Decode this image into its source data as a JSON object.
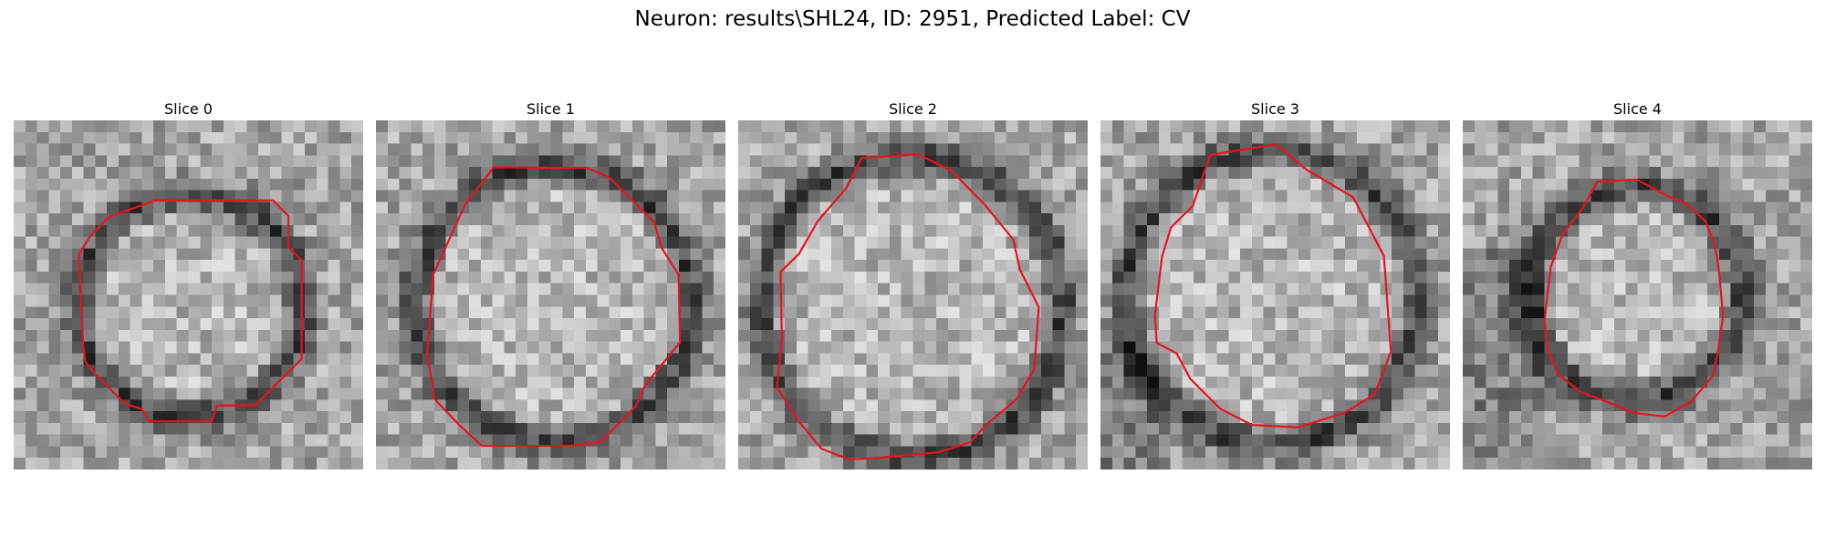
{
  "figure": {
    "title": "Neuron: results\\SHL24, ID: 2951, Predicted Label: CV"
  },
  "colors": {
    "background": "#ffffff",
    "contour": "#e8141c",
    "text": "#000000"
  },
  "panels": [
    {
      "title": "Slice 0",
      "contour": [
        [
          40.4,
          22.4
        ],
        [
          74.2,
          22.4
        ],
        [
          78.6,
          26.9
        ],
        [
          78.6,
          35.8
        ],
        [
          82.4,
          39.6
        ],
        [
          82.4,
          67.8
        ],
        [
          76.1,
          74.1
        ],
        [
          69.2,
          81.0
        ],
        [
          58.1,
          81.2
        ],
        [
          56.6,
          85.7
        ],
        [
          38.8,
          85.7
        ],
        [
          36.7,
          82.2
        ],
        [
          31.8,
          80.6
        ],
        [
          22.8,
          71.6
        ],
        [
          20.5,
          68.6
        ],
        [
          19.9,
          63.9
        ],
        [
          18.6,
          38.0
        ],
        [
          21.9,
          32.6
        ],
        [
          27.2,
          27.2
        ],
        [
          40.4,
          22.4
        ]
      ]
    },
    {
      "title": "Slice 1",
      "contour": [
        [
          33.7,
          12.9
        ],
        [
          60.3,
          13.1
        ],
        [
          66.7,
          15.8
        ],
        [
          79.6,
          28.6
        ],
        [
          81.7,
          35.9
        ],
        [
          86.6,
          43.7
        ],
        [
          87.0,
          63.1
        ],
        [
          77.1,
          75.2
        ],
        [
          74.4,
          81.3
        ],
        [
          64.1,
          91.7
        ],
        [
          55.1,
          92.7
        ],
        [
          30.3,
          92.7
        ],
        [
          23.7,
          86.6
        ],
        [
          16.6,
          79.1
        ],
        [
          16.1,
          74.3
        ],
        [
          14.6,
          66.9
        ],
        [
          16.4,
          43.6
        ],
        [
          25.5,
          23.6
        ],
        [
          33.7,
          12.9
        ]
      ]
    },
    {
      "title": "Slice 2",
      "contour": [
        [
          35.3,
          10.3
        ],
        [
          51.4,
          9.2
        ],
        [
          61.0,
          13.9
        ],
        [
          70.6,
          23.7
        ],
        [
          78.7,
          33.6
        ],
        [
          80.6,
          42.2
        ],
        [
          86.0,
          53.0
        ],
        [
          84.7,
          70.7
        ],
        [
          79.7,
          79.3
        ],
        [
          70.4,
          87.2
        ],
        [
          66.6,
          91.6
        ],
        [
          57.0,
          94.6
        ],
        [
          37.6,
          96.3
        ],
        [
          31.7,
          96.6
        ],
        [
          23.8,
          93.5
        ],
        [
          17.2,
          85.6
        ],
        [
          11.1,
          75.9
        ],
        [
          12.5,
          61.5
        ],
        [
          12.1,
          42.9
        ],
        [
          17.4,
          37.7
        ],
        [
          22.8,
          28.3
        ],
        [
          30.9,
          18.9
        ],
        [
          35.3,
          10.3
        ]
      ]
    },
    {
      "title": "Slice 3",
      "contour": [
        [
          31.4,
          9.4
        ],
        [
          50.2,
          6.3
        ],
        [
          59.1,
          13.7
        ],
        [
          72.3,
          21.5
        ],
        [
          81.1,
          38.3
        ],
        [
          83.1,
          65.7
        ],
        [
          78.5,
          77.9
        ],
        [
          69.8,
          83.3
        ],
        [
          56.4,
          87.4
        ],
        [
          43.3,
          86.7
        ],
        [
          34.3,
          82.1
        ],
        [
          25.7,
          73.5
        ],
        [
          21.8,
          66.2
        ],
        [
          16.1,
          63.2
        ],
        [
          15.6,
          55.3
        ],
        [
          17.6,
          38.5
        ],
        [
          20.2,
          30.1
        ],
        [
          26.4,
          24.0
        ],
        [
          31.4,
          9.4
        ]
      ]
    },
    {
      "title": "Slice 4",
      "contour": [
        [
          38.6,
          17.0
        ],
        [
          49.9,
          16.5
        ],
        [
          58.9,
          21.3
        ],
        [
          63.7,
          23.2
        ],
        [
          69.5,
          28.4
        ],
        [
          72.2,
          35.5
        ],
        [
          73.2,
          41.6
        ],
        [
          74.5,
          55.5
        ],
        [
          73.1,
          65.1
        ],
        [
          71.6,
          72.6
        ],
        [
          65.4,
          80.0
        ],
        [
          57.8,
          84.3
        ],
        [
          49.1,
          83.3
        ],
        [
          43.1,
          80.8
        ],
        [
          33.8,
          77.3
        ],
        [
          27.3,
          72.3
        ],
        [
          24.3,
          64.9
        ],
        [
          23.4,
          57.0
        ],
        [
          24.2,
          49.4
        ],
        [
          25.2,
          41.4
        ],
        [
          28.6,
          32.0
        ],
        [
          34.2,
          24.7
        ],
        [
          38.6,
          17.0
        ]
      ]
    }
  ]
}
